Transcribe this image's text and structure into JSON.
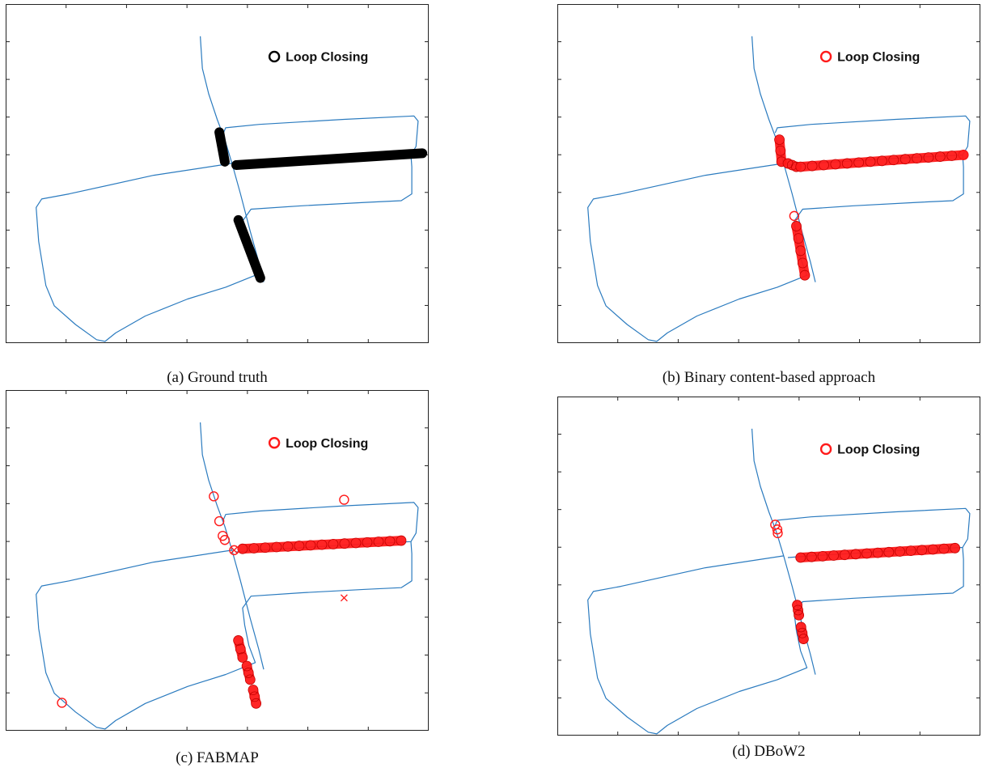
{
  "colors": {
    "path": "#2b7bbf",
    "ground_truth_marker": "#000000",
    "detected_marker": "#ff1a1a",
    "axis": "#222222"
  },
  "panels": [
    {
      "caption": "(a) Ground truth",
      "legend": {
        "label": "Loop Closing",
        "marker": "circle",
        "color": "#000000"
      },
      "chart_data": {
        "type": "scatter",
        "title": "",
        "xlabel": "",
        "ylabel": "",
        "axis_ticks_labeled": false,
        "legend_position": "top-right",
        "marker_style": "thick-band",
        "segments": [
          [
            [
              0.505,
              0.378
            ],
            [
              0.518,
              0.465
            ]
          ],
          [
            [
              0.545,
              0.475
            ],
            [
              0.985,
              0.44
            ]
          ],
          [
            [
              0.55,
              0.637
            ],
            [
              0.602,
              0.808
            ]
          ]
        ]
      }
    },
    {
      "caption": "(b) Binary content-based approach",
      "legend": {
        "label": "Loop Closing",
        "marker": "circle",
        "color": "#ff1a1a"
      },
      "chart_data": {
        "type": "scatter",
        "title": "",
        "xlabel": "",
        "ylabel": "",
        "axis_ticks_labeled": false,
        "legend_position": "top-right",
        "marker_style": "circles",
        "segments": [
          [
            [
              0.525,
              0.4
            ],
            [
              0.53,
              0.465
            ]
          ],
          [
            [
              0.545,
              0.47
            ],
            [
              0.565,
              0.48
            ]
          ],
          [
            [
              0.575,
              0.48
            ],
            [
              0.96,
              0.445
            ]
          ],
          [
            [
              0.565,
              0.655
            ],
            [
              0.585,
              0.8
            ]
          ]
        ],
        "points": [
          [
            0.56,
            0.625
          ],
          [
            0.96,
            0.445
          ]
        ]
      }
    },
    {
      "caption": "(c) FABMAP",
      "legend": {
        "label": "Loop Closing",
        "marker": "circle",
        "color": "#ff1a1a"
      },
      "chart_data": {
        "type": "scatter",
        "title": "",
        "xlabel": "",
        "ylabel": "",
        "axis_ticks_labeled": false,
        "legend_position": "top-right",
        "marker_style": "circles",
        "segments": [
          [
            [
              0.56,
              0.466
            ],
            [
              0.935,
              0.442
            ]
          ],
          [
            [
              0.55,
              0.735
            ],
            [
              0.56,
              0.785
            ]
          ],
          [
            [
              0.57,
              0.81
            ],
            [
              0.578,
              0.85
            ]
          ],
          [
            [
              0.585,
              0.88
            ],
            [
              0.592,
              0.92
            ]
          ]
        ],
        "points": [
          [
            0.492,
            0.312
          ],
          [
            0.505,
            0.385
          ],
          [
            0.513,
            0.428
          ],
          [
            0.518,
            0.44
          ],
          [
            0.8,
            0.322
          ],
          [
            0.54,
            0.47
          ],
          [
            0.133,
            0.918
          ]
        ],
        "cross_points": [
          [
            0.54,
            0.47
          ],
          [
            0.8,
            0.61
          ]
        ]
      }
    },
    {
      "caption": "(d) DBoW2",
      "legend": {
        "label": "Loop Closing",
        "marker": "circle",
        "color": "#ff1a1a"
      },
      "chart_data": {
        "type": "scatter",
        "title": "",
        "xlabel": "",
        "ylabel": "",
        "axis_ticks_labeled": false,
        "legend_position": "top-right",
        "marker_style": "circles",
        "segments": [
          [
            [
              0.575,
              0.475
            ],
            [
              0.94,
              0.447
            ]
          ],
          [
            [
              0.567,
              0.615
            ],
            [
              0.571,
              0.645
            ]
          ],
          [
            [
              0.576,
              0.68
            ],
            [
              0.582,
              0.715
            ]
          ]
        ],
        "points": [
          [
            0.515,
            0.378
          ],
          [
            0.52,
            0.392
          ],
          [
            0.521,
            0.403
          ]
        ]
      }
    }
  ]
}
